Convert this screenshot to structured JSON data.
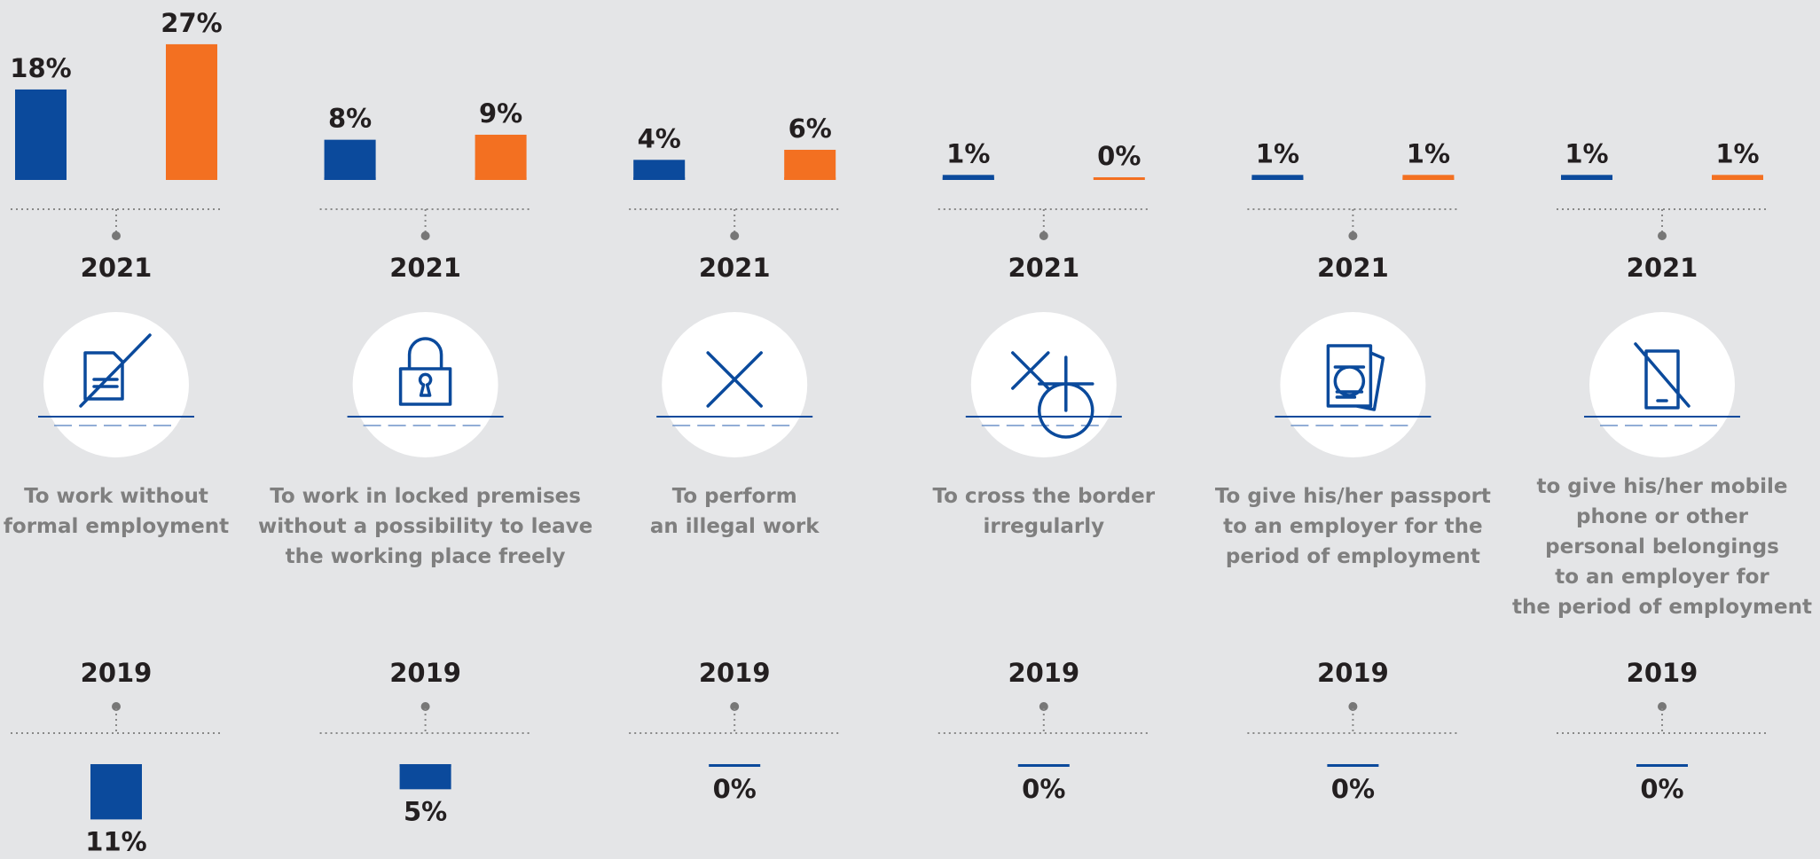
{
  "chart_data": {
    "type": "bar",
    "categories": [
      [
        "To work without",
        "formal employment"
      ],
      [
        "To work in locked premises",
        "without a possibility to leave",
        "the working place freely"
      ],
      [
        "To perform",
        "an illegal work"
      ],
      [
        "To cross the border",
        "irregularly"
      ],
      [
        "To give his/her passport",
        "to an employer for the",
        "period of employment"
      ],
      [
        "to give his/her mobile",
        "phone or other",
        "personal belongings",
        "to an employer for",
        "the period of employment"
      ]
    ],
    "groups": [
      {
        "year": "2021"
      },
      {
        "year": "2019"
      }
    ],
    "series": [
      {
        "group": 0,
        "color": "#0b4a9c",
        "values": [
          18,
          8,
          4,
          1,
          1,
          1
        ],
        "value_labels": [
          "18%",
          "8%",
          "4%",
          "1%",
          "1%",
          "1%"
        ]
      },
      {
        "group": 0,
        "color": "#f37021",
        "values": [
          27,
          9,
          6,
          0,
          1,
          1
        ],
        "value_labels": [
          "27%",
          "9%",
          "6%",
          "0%",
          "1%",
          "1%"
        ]
      },
      {
        "group": 1,
        "color": "#0b4a9c",
        "values": [
          11,
          5,
          0,
          0,
          0,
          0
        ],
        "value_labels": [
          "11%",
          "5%",
          "0%",
          "0%",
          "0%",
          "0%"
        ]
      }
    ]
  }
}
